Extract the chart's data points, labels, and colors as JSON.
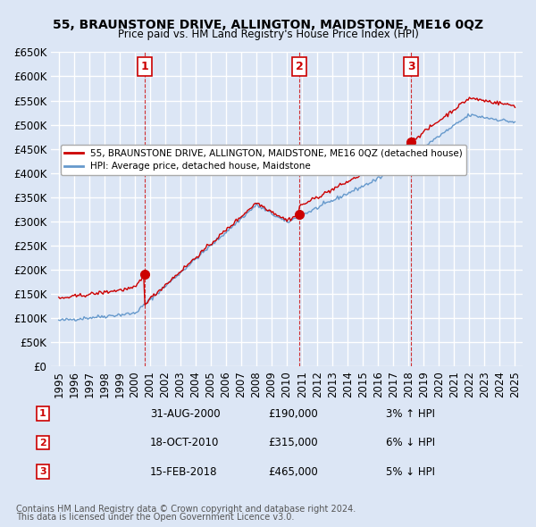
{
  "title": "55, BRAUNSTONE DRIVE, ALLINGTON, MAIDSTONE, ME16 0QZ",
  "subtitle": "Price paid vs. HM Land Registry's House Price Index (HPI)",
  "sales": [
    {
      "date": "2000-08-31",
      "price": 190000,
      "label": "1",
      "hpi_pct": "3%",
      "hpi_dir": "↑"
    },
    {
      "date": "2010-10-18",
      "price": 315000,
      "label": "2",
      "hpi_pct": "6%",
      "hpi_dir": "↓"
    },
    {
      "date": "2018-02-15",
      "price": 465000,
      "label": "3",
      "hpi_pct": "5%",
      "hpi_dir": "↓"
    }
  ],
  "sale_display": [
    {
      "num": 1,
      "date_str": "31-AUG-2000",
      "price_str": "£190,000",
      "hpi": "3% ↑ HPI"
    },
    {
      "num": 2,
      "date_str": "18-OCT-2010",
      "price_str": "£315,000",
      "hpi": "6% ↓ HPI"
    },
    {
      "num": 3,
      "date_str": "15-FEB-2018",
      "price_str": "£465,000",
      "hpi": "5% ↓ HPI"
    }
  ],
  "legend_line1": "55, BRAUNSTONE DRIVE, ALLINGTON, MAIDSTONE, ME16 0QZ (detached house)",
  "legend_line2": "HPI: Average price, detached house, Maidstone",
  "footer1": "Contains HM Land Registry data © Crown copyright and database right 2024.",
  "footer2": "This data is licensed under the Open Government Licence v3.0.",
  "background_color": "#dce6f5",
  "plot_bg_color": "#dce6f5",
  "grid_color": "#ffffff",
  "red_line_color": "#cc0000",
  "blue_line_color": "#6699cc",
  "dashed_color": "#cc0000",
  "ylim": [
    0,
    650000
  ],
  "yticks": [
    0,
    50000,
    100000,
    150000,
    200000,
    250000,
    300000,
    350000,
    400000,
    450000,
    500000,
    550000,
    600000,
    650000
  ],
  "xlabel_years": [
    "1995",
    "1996",
    "1997",
    "1998",
    "1999",
    "2000",
    "2001",
    "2002",
    "2003",
    "2004",
    "2005",
    "2006",
    "2007",
    "2008",
    "2009",
    "2010",
    "2011",
    "2012",
    "2013",
    "2014",
    "2015",
    "2016",
    "2017",
    "2018",
    "2019",
    "2020",
    "2021",
    "2022",
    "2023",
    "2024",
    "2025"
  ]
}
